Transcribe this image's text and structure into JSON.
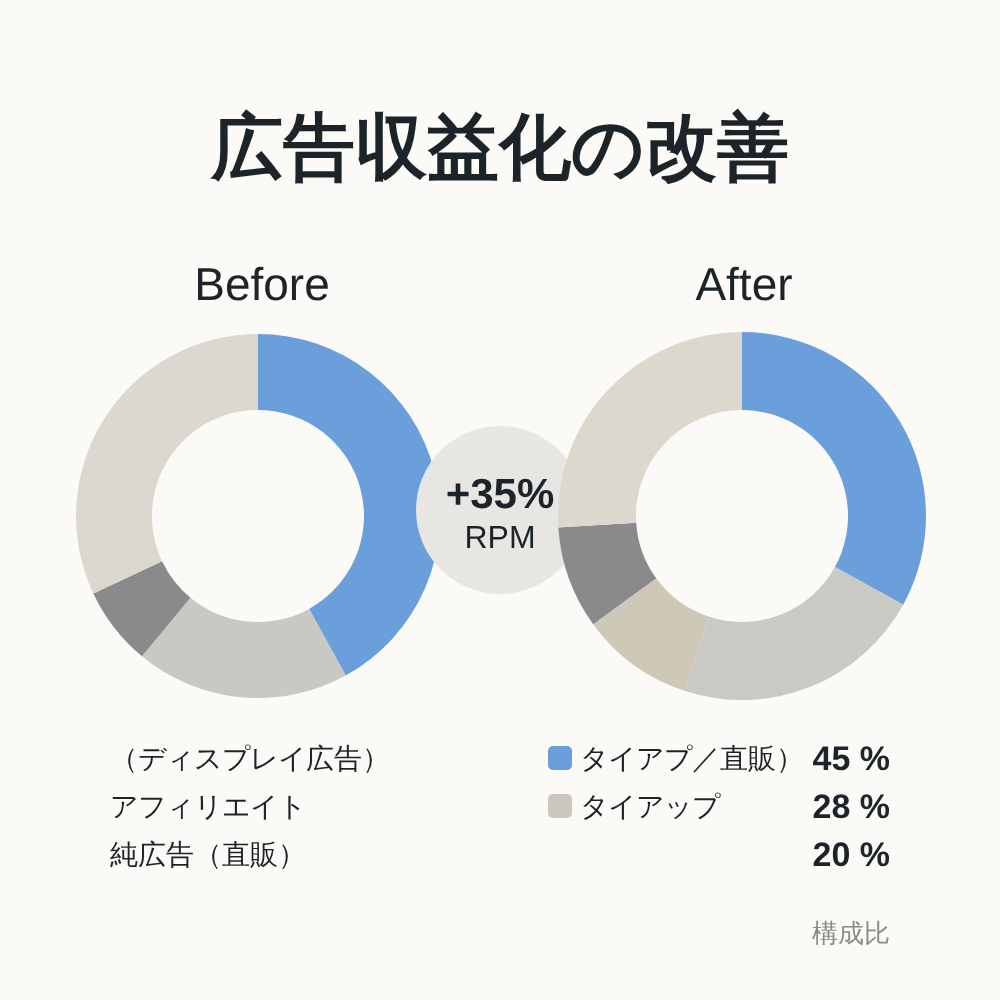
{
  "chart_data": [
    {
      "type": "other",
      "title": "広告収益化の改善"
    },
    {
      "type": "donut",
      "title": "Before",
      "categories": [
        null,
        null,
        null,
        null
      ],
      "values": [
        42,
        19,
        7,
        32
      ],
      "colors": [
        "#6a9fdb",
        "#c9c9c4",
        "#8a8a8c",
        "#dbd8cf"
      ]
    },
    {
      "type": "other",
      "annotations": [
        "+35%",
        "RPM"
      ]
    },
    {
      "type": "donut",
      "title": "After",
      "categories": [
        null,
        null,
        null,
        null,
        null
      ],
      "values": [
        33,
        22,
        10,
        9,
        26
      ],
      "colors": [
        "#6b9fdb",
        "#cacac5",
        "#cdc8b8",
        "#8a898b",
        "#dcd8ce"
      ]
    },
    {
      "type": "other",
      "annotations": [
        "（ディスプレイ広告）",
        "タイアプ／直販）",
        "45 %",
        "アフィリエイト",
        "タイアップ",
        "28 %",
        "純広告（直販）",
        "20 %",
        "構成比"
      ]
    }
  ]
}
